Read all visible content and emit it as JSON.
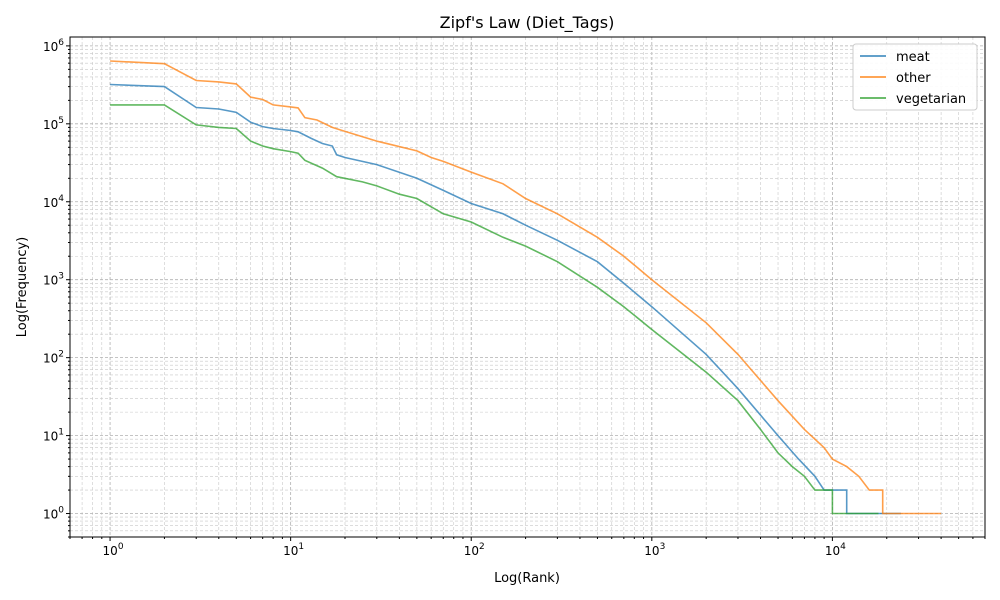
{
  "chart_data": {
    "type": "line",
    "title": "Zipf's Law (Diet_Tags)",
    "xlabel": "Log(Rank)",
    "ylabel": "Log(Frequency)",
    "xscale": "log",
    "yscale": "log",
    "xlim": [
      0.6,
      70000
    ],
    "ylim": [
      0.5,
      1300000
    ],
    "x_ticks": [
      {
        "base": "10",
        "exp": "0",
        "value": 1
      },
      {
        "base": "10",
        "exp": "1",
        "value": 10
      },
      {
        "base": "10",
        "exp": "2",
        "value": 100
      },
      {
        "base": "10",
        "exp": "3",
        "value": 1000
      },
      {
        "base": "10",
        "exp": "4",
        "value": 10000
      }
    ],
    "y_ticks": [
      {
        "base": "10",
        "exp": "0",
        "value": 1
      },
      {
        "base": "10",
        "exp": "1",
        "value": 10
      },
      {
        "base": "10",
        "exp": "2",
        "value": 100
      },
      {
        "base": "10",
        "exp": "3",
        "value": 1000
      },
      {
        "base": "10",
        "exp": "4",
        "value": 10000
      },
      {
        "base": "10",
        "exp": "5",
        "value": 100000
      },
      {
        "base": "10",
        "exp": "6",
        "value": 1000000
      }
    ],
    "grid": true,
    "legend_position": "top-right",
    "series": [
      {
        "name": "meat",
        "color": "#1f77b4",
        "points": [
          [
            1,
            320000
          ],
          [
            2,
            300000
          ],
          [
            3,
            162000
          ],
          [
            4,
            155000
          ],
          [
            5,
            140000
          ],
          [
            6,
            105000
          ],
          [
            7,
            92000
          ],
          [
            8,
            87000
          ],
          [
            10,
            82000
          ],
          [
            11,
            79000
          ],
          [
            13,
            65000
          ],
          [
            15,
            56000
          ],
          [
            17,
            52000
          ],
          [
            18,
            40000
          ],
          [
            20,
            37000
          ],
          [
            30,
            30000
          ],
          [
            50,
            20000
          ],
          [
            70,
            14000
          ],
          [
            100,
            9500
          ],
          [
            150,
            7000
          ],
          [
            200,
            5000
          ],
          [
            300,
            3200
          ],
          [
            500,
            1700
          ],
          [
            700,
            900
          ],
          [
            1000,
            450
          ],
          [
            2000,
            110
          ],
          [
            3000,
            40
          ],
          [
            5000,
            10
          ],
          [
            6500,
            5
          ],
          [
            8000,
            3
          ],
          [
            9000,
            2
          ],
          [
            12000,
            2
          ],
          [
            12000,
            1
          ],
          [
            24000,
            1
          ]
        ]
      },
      {
        "name": "other",
        "color": "#ff7f0e",
        "points": [
          [
            1,
            640000
          ],
          [
            2,
            590000
          ],
          [
            3,
            360000
          ],
          [
            4,
            345000
          ],
          [
            5,
            325000
          ],
          [
            6,
            220000
          ],
          [
            7,
            205000
          ],
          [
            8,
            175000
          ],
          [
            10,
            165000
          ],
          [
            11,
            160000
          ],
          [
            12,
            120000
          ],
          [
            14,
            112000
          ],
          [
            17,
            90000
          ],
          [
            20,
            80000
          ],
          [
            30,
            60000
          ],
          [
            50,
            45000
          ],
          [
            60,
            37000
          ],
          [
            70,
            33000
          ],
          [
            100,
            24000
          ],
          [
            150,
            17000
          ],
          [
            200,
            11000
          ],
          [
            300,
            7000
          ],
          [
            500,
            3500
          ],
          [
            700,
            2000
          ],
          [
            1000,
            1000
          ],
          [
            2000,
            280
          ],
          [
            3000,
            110
          ],
          [
            5000,
            28
          ],
          [
            7000,
            12
          ],
          [
            9000,
            7
          ],
          [
            10000,
            5
          ],
          [
            12000,
            4
          ],
          [
            14000,
            3
          ],
          [
            16000,
            2
          ],
          [
            19000,
            2
          ],
          [
            19000,
            1
          ],
          [
            40000,
            1
          ]
        ]
      },
      {
        "name": "vegetarian",
        "color": "#2ca02c",
        "points": [
          [
            1,
            175000
          ],
          [
            2,
            175000
          ],
          [
            3,
            97000
          ],
          [
            4,
            90000
          ],
          [
            5,
            87000
          ],
          [
            6,
            60000
          ],
          [
            7,
            52000
          ],
          [
            8,
            48000
          ],
          [
            10,
            44000
          ],
          [
            11,
            42000
          ],
          [
            12,
            34000
          ],
          [
            15,
            27000
          ],
          [
            18,
            21000
          ],
          [
            25,
            18000
          ],
          [
            30,
            16000
          ],
          [
            40,
            12500
          ],
          [
            50,
            11000
          ],
          [
            70,
            7000
          ],
          [
            100,
            5500
          ],
          [
            150,
            3500
          ],
          [
            200,
            2700
          ],
          [
            300,
            1700
          ],
          [
            500,
            800
          ],
          [
            700,
            450
          ],
          [
            1000,
            230
          ],
          [
            2000,
            65
          ],
          [
            3000,
            28
          ],
          [
            4000,
            12
          ],
          [
            5000,
            6
          ],
          [
            6000,
            4
          ],
          [
            7000,
            3
          ],
          [
            8000,
            2
          ],
          [
            10000,
            2
          ],
          [
            10000,
            1
          ],
          [
            18000,
            1
          ]
        ]
      }
    ]
  }
}
